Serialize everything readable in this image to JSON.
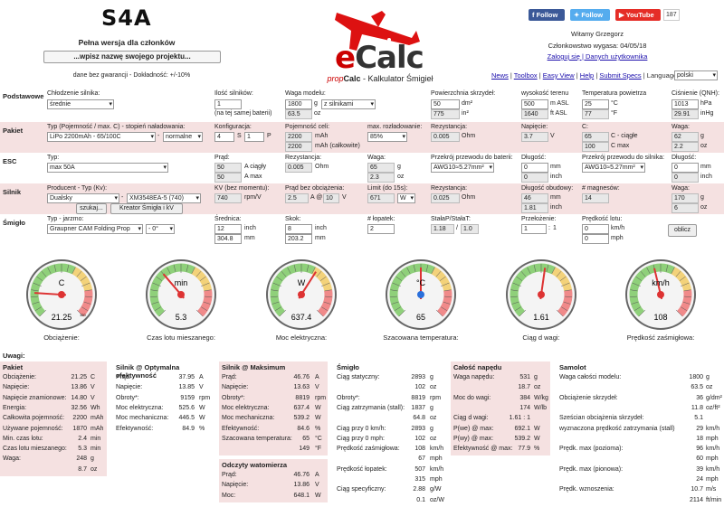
{
  "header": {
    "logo": "S4A",
    "full_version": "Pełna wersja dla członków",
    "project_placeholder": "...wpisz nazwę swojego projektu...",
    "guarantee": "dane bez gwarancji - Dokładność: +/-10%",
    "ecalc_e": "e",
    "ecalc_rest": "Calc",
    "subtitle_prefix": "prop",
    "subtitle_calc": "Calc",
    "subtitle_rest": " - Kalkulator Śmigieł",
    "facebook": "Follow",
    "twitter": "Follow",
    "youtube": "YouTube",
    "youtube_count": "187",
    "welcome": "Witamy Grzegorz",
    "membership": "Członkowstwo wygasa: 04/05/18",
    "login": "Zaloguj się",
    "user_data": "Danych użytkownika",
    "links": [
      "News",
      "Toolbox",
      "Easy View",
      "Help",
      "Submit Specs"
    ],
    "language_label": "Language:",
    "language_value": "polski"
  },
  "colors": {
    "pink": "#f5e1e1",
    "accent": "#c00000",
    "link": "#1a0dab"
  },
  "podstawowe": {
    "label": "Podstawowe",
    "cooling_label": "Chłodzenie silnika:",
    "cooling": "średnie",
    "motors_label": "Ilość silników:",
    "motors": "1",
    "motors_note": "(na tej samej baterii)",
    "weight_label": "Waga modelu:",
    "weight": "1800",
    "weight_unit_sel": "z silnikami",
    "weight_oz": "63.5",
    "oz": "oz",
    "g": "g",
    "wing_label": "Powierzchnia skrzydeł:",
    "wing": "50",
    "wing_unit": "dm²",
    "wing_in": "775",
    "wing_in_unit": "in²",
    "alt_label": "wysokość terenu",
    "alt": "500",
    "alt_unit": "m ASL",
    "alt_ft": "1640",
    "alt_ft_unit": "ft ASL",
    "temp_label": "Temperatura powietrza",
    "temp": "25",
    "temp_unit": "°C",
    "temp_f": "77",
    "temp_f_unit": "°F",
    "press_label": "Ciśnienie (QNH):",
    "press": "1013",
    "press_unit": "hPa",
    "press_in": "29.91",
    "press_in_unit": "inHg"
  },
  "pakiet": {
    "label": "Pakiet",
    "type_label": "Typ (Pojemność / max. C) - stopień naładowania:",
    "type": "LiPo 2200mAh - 65/100C",
    "charge": "normalne",
    "config_label": "Konfiguracja:",
    "cfg_s": "4",
    "s": "S",
    "cfg_p": "1",
    "p": "P",
    "cap_label": "Pojemność celi:",
    "cap": "2200",
    "cap_unit": "mAh",
    "cap_total": "2200",
    "cap_total_unit": "mAh (całkowite)",
    "disch_label": "max. rozładowanie:",
    "disch": "85%",
    "res_label": "Rezystancja:",
    "res": "0.005",
    "res_unit": "Ohm",
    "volt_label": "Napięcie:",
    "volt": "3.7",
    "volt_unit": "V",
    "c_label": "C:",
    "c_cont": "65",
    "c_cont_unit": "C - ciągłe",
    "c_max": "100",
    "c_max_unit": "C max",
    "w_label": "Waga:",
    "w_g": "62",
    "w_g_unit": "g",
    "w_oz": "2.2",
    "w_oz_unit": "oz"
  },
  "esc": {
    "label": "ESC",
    "type_label": "Typ:",
    "type": "max 50A",
    "cur_label": "Prąd:",
    "cur_cont": "50",
    "cur_cont_unit": "A ciągły",
    "cur_max": "50",
    "cur_max_unit": "A max",
    "res_label": "Rezystancja:",
    "res": "0.005",
    "res_unit": "Ohm",
    "w_label": "Waga:",
    "w_g": "65",
    "w_g_unit": "g",
    "w_oz": "2.3",
    "w_oz_unit": "oz",
    "wire_bat_label": "Przekrój przewodu do baterii:",
    "wire_bat": "AWG10≈5.27mm²",
    "len_label": "Długość:",
    "len_mm": "0",
    "len_mm_unit": "mm",
    "len_in": "0",
    "len_in_unit": "inch",
    "wire_mot_label": "Przekrój przewodu do silnika:",
    "wire_mot": "AWG10≈5.27mm²",
    "len2_label": "Długość:",
    "len2_mm": "0",
    "len2_mm_unit": "mm",
    "len2_in": "0",
    "len2_in_unit": "inch"
  },
  "silnik": {
    "label": "Silnik",
    "prod_label": "Producent - Typ (Kv):",
    "prod": "Dualsky",
    "type": "XM3548EA-5 (740)",
    "search_btn": "szukaj...",
    "wizard_btn": "Kreator Śmigła i kV",
    "kv_label": "KV (bez momentu):",
    "kv": "740",
    "kv_unit": "rpm/V",
    "idle_label": "Prąd bez obciążenia:",
    "idle": "2.5",
    "idle_at": "A @",
    "idle_v": "10",
    "idle_v_unit": "V",
    "lim_label": "Limit (do 15s):",
    "lim": "671",
    "lim_unit": "W",
    "res_label": "Rezystancja:",
    "res": "0.025",
    "res_unit": "Ohm",
    "case_label": "Długość obudowy:",
    "case_mm": "46",
    "case_mm_unit": "mm",
    "case_in": "1.81",
    "case_in_unit": "inch",
    "mag_label": "# magnesów:",
    "mag": "14",
    "w_label": "Waga:",
    "w_g": "170",
    "w_g_unit": "g",
    "w_oz": "6",
    "w_oz_unit": "oz"
  },
  "smiglo": {
    "label": "Śmigło",
    "type_label": "Typ - jarzmo:",
    "type": "Graupner CAM Folding Prop",
    "yoke": "- 0°",
    "dia_label": "Średnica:",
    "dia_in": "12",
    "dia_in_unit": "inch",
    "dia_mm": "304.8",
    "dia_mm_unit": "mm",
    "pitch_label": "Skok:",
    "pitch_in": "8",
    "pitch_in_unit": "inch",
    "pitch_mm": "203.2",
    "pitch_mm_unit": "mm",
    "blades_label": "# łopatek:",
    "blades": "2",
    "const_label": "StałaP/StałaT:",
    "const_p": "1.18",
    "const_t": "1.0",
    "gear_label": "Przełożenie:",
    "gear_a": "1",
    "gear_b": "1",
    "speed_label": "Prędkość lotu:",
    "speed_kmh": "0",
    "speed_kmh_unit": "km/h",
    "speed_mph": "0",
    "speed_mph_unit": "mph",
    "calc_btn": "oblicz"
  },
  "gauges": [
    {
      "label": "Obciążenie:",
      "unit": "C",
      "value": "21.25",
      "max": "120",
      "frac": 0.18
    },
    {
      "label": "Czas lotu mieszanego:",
      "unit": "min",
      "value": "5.3",
      "max": "",
      "frac": 0.35
    },
    {
      "label": "Moc elektryczna:",
      "unit": "W",
      "value": "637.4",
      "max": "",
      "frac": 0.62
    },
    {
      "label": "Szacowana temperatura:",
      "unit": "°C",
      "value": "65",
      "max": "",
      "frac": 0.5
    },
    {
      "label": "Ciąg d wagi:",
      "unit": "",
      "value": "1.61",
      "max": "",
      "frac": 0.53
    },
    {
      "label": "Prędkość zaśmigłowa:",
      "unit": "km/h",
      "value": "108",
      "max": "",
      "frac": 0.45
    }
  ],
  "results": {
    "remarks": "Uwagi:",
    "pakiet": {
      "title": "Pakiet",
      "rows": [
        [
          "Obciążenie:",
          "21.25",
          "C"
        ],
        [
          "Napięcie:",
          "13.86",
          "V"
        ],
        [
          "Napięcie znamionowe:",
          "14.80",
          "V"
        ],
        [
          "Energia:",
          "32.56",
          "Wh"
        ],
        [
          "Całkowita pojemność:",
          "2200",
          "mAh"
        ],
        [
          "Używane pojemność:",
          "1870",
          "mAh"
        ],
        [
          "Min. czas lotu:",
          "2.4",
          "min"
        ],
        [
          "Czas lotu mieszanego:",
          "5.3",
          "min"
        ],
        [
          "Waga:",
          "248",
          "g"
        ],
        [
          "",
          "8.7",
          "oz"
        ]
      ]
    },
    "silnik_opt": {
      "title": "Silnik @ Optymalna efektywność",
      "rows": [
        [
          "Prąd:",
          "37.95",
          "A"
        ],
        [
          "Napięcie:",
          "13.85",
          "V"
        ],
        [
          "Obroty*:",
          "9159",
          "rpm"
        ],
        [
          "Moc elektryczna:",
          "525.6",
          "W"
        ],
        [
          "Moc mechaniczna:",
          "446.5",
          "W"
        ],
        [
          "Efektywność:",
          "84.9",
          "%"
        ]
      ]
    },
    "silnik_max": {
      "title": "Silnik @ Maksimum",
      "rows": [
        [
          "Prąd:",
          "46.76",
          "A"
        ],
        [
          "Napięcie:",
          "13.63",
          "V"
        ],
        [
          "Obroty*:",
          "8819",
          "rpm"
        ],
        [
          "Moc elektryczna:",
          "637.4",
          "W"
        ],
        [
          "Moc mechaniczna:",
          "539.2",
          "W"
        ],
        [
          "Efektywność:",
          "84.6",
          "%"
        ],
        [
          "Szacowana temperatura:",
          "65",
          "°C"
        ],
        [
          "",
          "149",
          "°F"
        ]
      ]
    },
    "odczyty": {
      "title": "Odczyty watomierza",
      "rows": [
        [
          "Prąd:",
          "46.76",
          "A"
        ],
        [
          "Napięcie:",
          "13.86",
          "V"
        ],
        [
          "Moc:",
          "648.1",
          "W"
        ]
      ]
    },
    "smiglo": {
      "title": "Śmigło",
      "rows": [
        [
          "Ciąg statyczny:",
          "2893",
          "g"
        ],
        [
          "",
          "102",
          "oz"
        ],
        [
          "Obroty*:",
          "8819",
          "rpm"
        ],
        [
          "Ciąg zatrzymania (stall):",
          "1837",
          "g"
        ],
        [
          "",
          "64.8",
          "oz"
        ],
        [
          "Ciąg przy 0 km/h:",
          "2893",
          "g"
        ],
        [
          "Ciąg przy 0 mph:",
          "102",
          "oz"
        ],
        [
          "Prędkość zaśmigłowa:",
          "108",
          "km/h"
        ],
        [
          "",
          "67",
          "mph"
        ],
        [
          "Prędkość łopatek:",
          "507",
          "km/h"
        ],
        [
          "",
          "315",
          "mph"
        ],
        [
          "Ciąg specyficzny:",
          "2.88",
          "g/W"
        ],
        [
          "",
          "0.1",
          "oz/W"
        ]
      ]
    },
    "calosc": {
      "title": "Całość napędu",
      "rows": [
        [
          "Waga napędu:",
          "531",
          "g"
        ],
        [
          "",
          "18.7",
          "oz"
        ],
        [
          "Moc do wagi:",
          "384",
          "W/kg"
        ],
        [
          "",
          "174",
          "W/lb"
        ],
        [
          "Ciąg d wagi:",
          "1.61 : 1",
          ""
        ],
        [
          "P(we) @ max:",
          "692.1",
          "W"
        ],
        [
          "P(wy) @ max:",
          "539.2",
          "W"
        ],
        [
          "Efektywność @ max:",
          "77.9",
          "%"
        ]
      ]
    },
    "samolot": {
      "title": "Samolot",
      "rows": [
        [
          "Waga całości modelu:",
          "1800",
          "g"
        ],
        [
          "",
          "63.5",
          "oz"
        ],
        [
          "Obciążenie skrzydeł:",
          "36",
          "g/dm²"
        ],
        [
          "",
          "11.8",
          "oz/ft²"
        ],
        [
          "Sześcian obciążenia skrzydeł:",
          "5.1",
          ""
        ],
        [
          "wyznaczona prędkość zatrzymania (stall)",
          "29",
          "km/h"
        ],
        [
          "",
          "18",
          "mph"
        ],
        [
          "Prędk. max (pozioma):",
          "96",
          "km/h"
        ],
        [
          "",
          "60",
          "mph"
        ],
        [
          "Prędk. max (pionowa):",
          "39",
          "km/h"
        ],
        [
          "",
          "24",
          "mph"
        ],
        [
          "Prędk. wznoszenia:",
          "10.7",
          "m/s"
        ],
        [
          "",
          "2114",
          "ft/min"
        ]
      ]
    }
  }
}
